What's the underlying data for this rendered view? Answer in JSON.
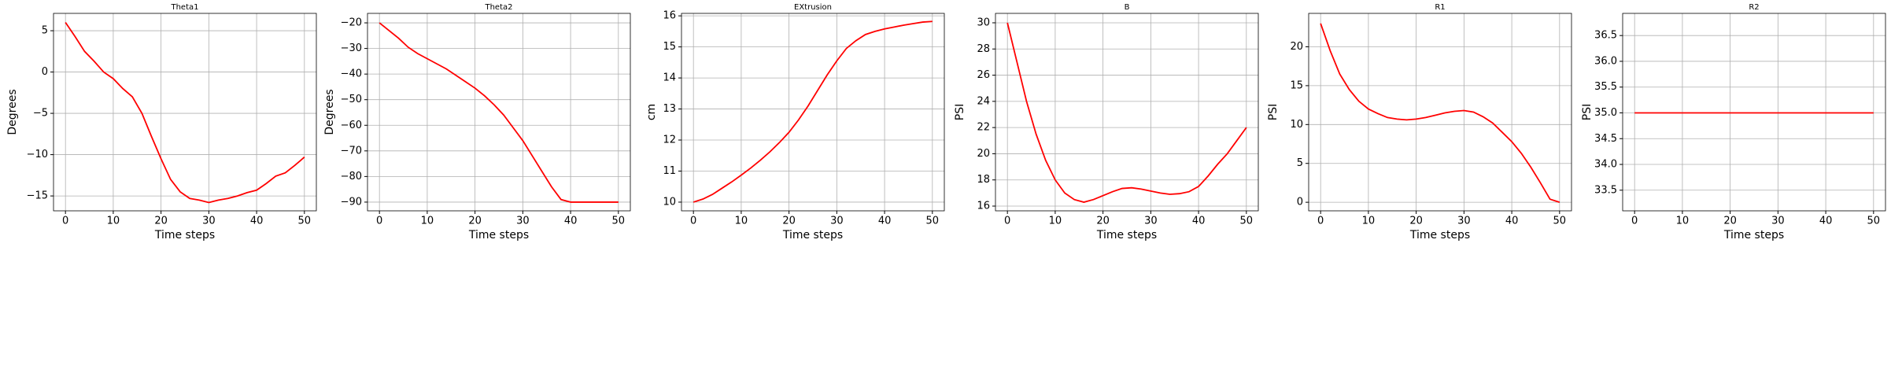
{
  "chart_data": [
    {
      "type": "line",
      "title": "Theta1",
      "xlabel": "Time steps",
      "ylabel": "Degrees",
      "color": "#ff0000",
      "grid": true,
      "x": [
        0,
        2,
        4,
        6,
        8,
        10,
        12,
        14,
        16,
        18,
        20,
        22,
        24,
        26,
        28,
        30,
        32,
        34,
        36,
        38,
        40,
        42,
        44,
        46,
        48,
        50
      ],
      "values": [
        6,
        4.3,
        2.5,
        1.3,
        0,
        -0.8,
        -2,
        -3,
        -5,
        -7.8,
        -10.5,
        -13,
        -14.5,
        -15.3,
        -15.5,
        -15.8,
        -15.5,
        -15.3,
        -15,
        -14.6,
        -14.3,
        -13.5,
        -12.6,
        -12.2,
        -11.3,
        -10.3
      ],
      "xlim": [
        -2.5,
        52.5
      ],
      "xticks": [
        0,
        10,
        20,
        30,
        40,
        50
      ],
      "ylim": [
        -16.8,
        7.1
      ],
      "yticks": [
        {
          "value": -15,
          "label": "−15"
        },
        {
          "value": -10,
          "label": "−10"
        },
        {
          "value": -5,
          "label": "−5"
        },
        0,
        5
      ]
    },
    {
      "type": "line",
      "title": "Theta2",
      "xlabel": "Time steps",
      "ylabel": "Degrees",
      "color": "#ff0000",
      "grid": true,
      "x": [
        0,
        2,
        4,
        6,
        8,
        10,
        12,
        14,
        16,
        18,
        20,
        22,
        24,
        26,
        28,
        30,
        32,
        34,
        36,
        38,
        40,
        42,
        44,
        46,
        48,
        50
      ],
      "values": [
        -20,
        -23,
        -26,
        -29.5,
        -32,
        -34,
        -36,
        -38,
        -40.5,
        -43,
        -45.5,
        -48.5,
        -52,
        -56,
        -61,
        -66,
        -72,
        -78,
        -84,
        -89,
        -90,
        -90,
        -90,
        -90,
        -90,
        -90
      ],
      "xlim": [
        -2.5,
        52.5
      ],
      "xticks": [
        0,
        10,
        20,
        30,
        40,
        50
      ],
      "ylim": [
        -93.4,
        -16.3
      ],
      "yticks": [
        {
          "value": -90,
          "label": "−90"
        },
        {
          "value": -80,
          "label": "−80"
        },
        {
          "value": -70,
          "label": "−70"
        },
        {
          "value": -60,
          "label": "−60"
        },
        {
          "value": -50,
          "label": "−50"
        },
        {
          "value": -40,
          "label": "−40"
        },
        {
          "value": -30,
          "label": "−30"
        },
        {
          "value": -20,
          "label": "−20"
        }
      ]
    },
    {
      "type": "line",
      "title": "EXtrusion",
      "xlabel": "Time steps",
      "ylabel": "cm",
      "color": "#ff0000",
      "grid": true,
      "x": [
        0,
        2,
        4,
        6,
        8,
        10,
        12,
        14,
        16,
        18,
        20,
        22,
        24,
        26,
        28,
        30,
        32,
        34,
        36,
        38,
        40,
        42,
        44,
        46,
        48,
        50
      ],
      "values": [
        10,
        10.1,
        10.25,
        10.45,
        10.65,
        10.87,
        11.1,
        11.35,
        11.62,
        11.92,
        12.25,
        12.65,
        13.1,
        13.6,
        14.1,
        14.55,
        14.95,
        15.2,
        15.4,
        15.5,
        15.58,
        15.64,
        15.7,
        15.75,
        15.8,
        15.82
      ],
      "xlim": [
        -2.5,
        52.5
      ],
      "xticks": [
        0,
        10,
        20,
        30,
        40,
        50
      ],
      "ylim": [
        9.72,
        16.08
      ],
      "yticks": [
        10,
        11,
        12,
        13,
        14,
        15,
        16
      ]
    },
    {
      "type": "line",
      "title": "B",
      "xlabel": "Time steps",
      "ylabel": "PSI",
      "color": "#ff0000",
      "grid": true,
      "x": [
        0,
        2,
        4,
        6,
        8,
        10,
        12,
        14,
        16,
        18,
        20,
        22,
        24,
        26,
        28,
        30,
        32,
        34,
        36,
        38,
        40,
        42,
        44,
        46,
        48,
        50
      ],
      "values": [
        30,
        27,
        24,
        21.5,
        19.5,
        18,
        17,
        16.5,
        16.3,
        16.5,
        16.8,
        17.1,
        17.35,
        17.4,
        17.3,
        17.15,
        17,
        16.9,
        16.95,
        17.1,
        17.5,
        18.3,
        19.2,
        20,
        21,
        22
      ],
      "xlim": [
        -2.5,
        52.5
      ],
      "xticks": [
        0,
        10,
        20,
        30,
        40,
        50
      ],
      "ylim": [
        15.64,
        30.72
      ],
      "yticks": [
        16,
        18,
        20,
        22,
        24,
        26,
        28,
        30
      ]
    },
    {
      "type": "line",
      "title": "R1",
      "xlabel": "Time steps",
      "ylabel": "PSI",
      "color": "#ff0000",
      "grid": true,
      "x": [
        0,
        2,
        4,
        6,
        8,
        10,
        12,
        14,
        16,
        18,
        20,
        22,
        24,
        26,
        28,
        30,
        32,
        34,
        36,
        38,
        40,
        42,
        44,
        46,
        48,
        50
      ],
      "values": [
        23,
        19.5,
        16.5,
        14.5,
        13,
        12,
        11.4,
        10.9,
        10.7,
        10.6,
        10.7,
        10.9,
        11.2,
        11.5,
        11.7,
        11.8,
        11.6,
        11,
        10.2,
        9,
        7.8,
        6.3,
        4.5,
        2.5,
        0.4,
        0
      ],
      "xlim": [
        -2.5,
        52.5
      ],
      "xticks": [
        0,
        10,
        20,
        30,
        40,
        50
      ],
      "ylim": [
        -1.1,
        24.3
      ],
      "yticks": [
        0,
        5,
        10,
        15,
        20
      ]
    },
    {
      "type": "line",
      "title": "R2",
      "xlabel": "Time steps",
      "ylabel": "PSI",
      "color": "#ff0000",
      "grid": true,
      "x": [
        0,
        50
      ],
      "values": [
        35,
        35
      ],
      "xlim": [
        -2.5,
        52.5
      ],
      "xticks": [
        0,
        10,
        20,
        30,
        40,
        50
      ],
      "ylim": [
        33.1,
        36.93
      ],
      "yticks": [
        {
          "value": 33.5,
          "label": "33.5"
        },
        {
          "value": 34,
          "label": "34.0"
        },
        {
          "value": 34.5,
          "label": "34.5"
        },
        {
          "value": 35,
          "label": "35.0"
        },
        {
          "value": 35.5,
          "label": "35.5"
        },
        {
          "value": 36,
          "label": "36.0"
        },
        {
          "value": 36.5,
          "label": "36.5"
        }
      ]
    }
  ]
}
